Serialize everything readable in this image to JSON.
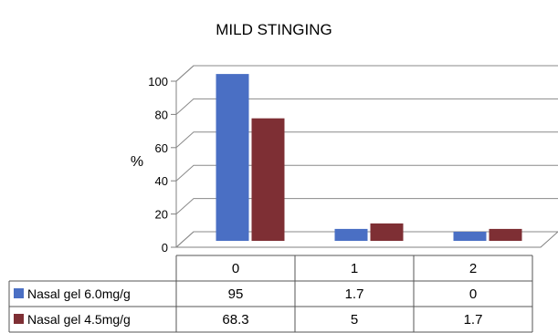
{
  "chart_data": {
    "type": "bar",
    "title": "MILD STINGING",
    "ylabel": "%",
    "xlabel": "",
    "ylim": [
      0,
      100
    ],
    "y_ticks": [
      0,
      20,
      40,
      60,
      80,
      100
    ],
    "categories": [
      "0",
      "1",
      "2"
    ],
    "grid": true,
    "legend": "data-table",
    "series": [
      {
        "name": "Nasal gel 6.0mg/g",
        "color": "#4A6FC4",
        "values": [
          95,
          1.7,
          0
        ],
        "labels": [
          "95",
          "1.7",
          "0"
        ]
      },
      {
        "name": "Nasal gel 4.5mg/g",
        "color": "#7E2F34",
        "values": [
          68.3,
          5,
          1.7
        ],
        "labels": [
          "68.3",
          "5",
          "1.7"
        ]
      }
    ]
  }
}
